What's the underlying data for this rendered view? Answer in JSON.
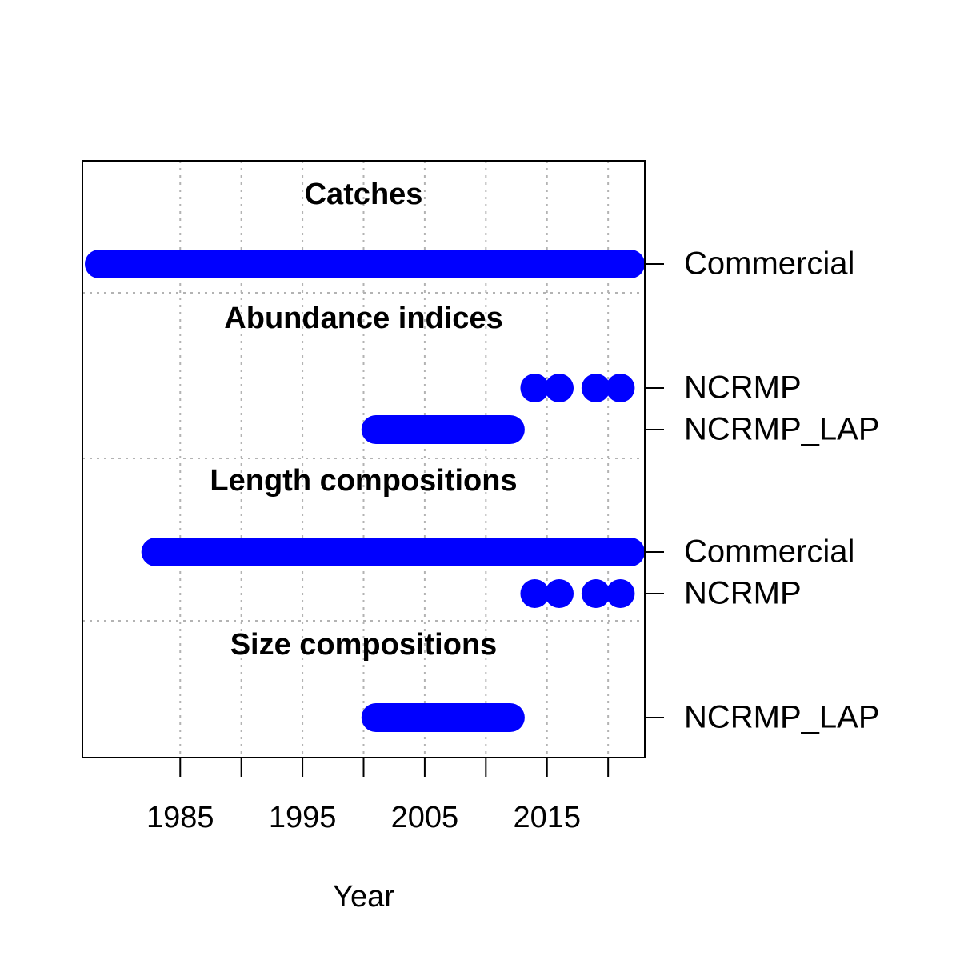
{
  "chart_data": {
    "type": "timeline",
    "xlabel": "Year",
    "xlim": [
      1977,
      2023
    ],
    "x_ticks": [
      1985,
      1990,
      1995,
      2000,
      2005,
      2010,
      2015,
      2020
    ],
    "x_tick_labels": [
      {
        "value": 1985,
        "label": "1985"
      },
      {
        "value": 1995,
        "label": "1995"
      },
      {
        "value": 2005,
        "label": "2005"
      },
      {
        "value": 2015,
        "label": "2015"
      }
    ],
    "grid": true,
    "marker_color": "#0000ff",
    "sections": [
      {
        "title": "Catches",
        "series": [
          {
            "fleet": "Commercial",
            "years_from": 1981,
            "years_to": 2022
          }
        ]
      },
      {
        "title": "Abundance indices",
        "series": [
          {
            "fleet": "NCRMP",
            "years": [
              2014,
              2016,
              2019,
              2021
            ]
          },
          {
            "fleet": "NCRMP_LAP",
            "years_from": 2001,
            "years_to": 2012
          }
        ]
      },
      {
        "title": "Length compositions",
        "series": [
          {
            "fleet": "Commercial",
            "years_from": 1983,
            "years_to": 2022
          },
          {
            "fleet": "NCRMP",
            "years": [
              2014,
              2016,
              2019,
              2021
            ]
          }
        ]
      },
      {
        "title": "Size compositions",
        "series": [
          {
            "fleet": "NCRMP_LAP",
            "years_from": 2001,
            "years_to": 2012
          }
        ]
      }
    ]
  }
}
